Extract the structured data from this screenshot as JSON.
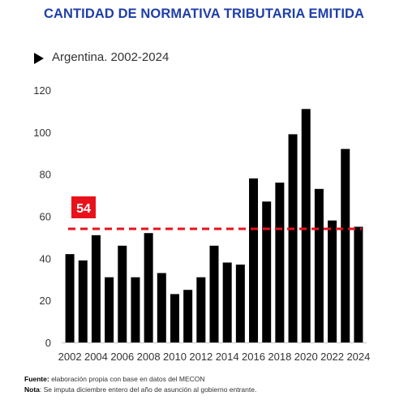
{
  "title": "CANTIDAD DE NORMATIVA TRIBUTARIA EMITIDA",
  "subtitle": "Argentina. 2002-2024",
  "footnotes": {
    "source_label": "Fuente:",
    "source_text": " elaboración propia con base en datos del MECON",
    "note_label": "Nota",
    "note_text": ": Se imputa diciembre entero del año de asunción al gobierno entrante."
  },
  "chart_data": {
    "type": "bar",
    "categories": [
      "2002",
      "2003",
      "2004",
      "2005",
      "2006",
      "2007",
      "2008",
      "2009",
      "2010",
      "2011",
      "2012",
      "2013",
      "2014",
      "2015",
      "2016",
      "2017",
      "2018",
      "2019",
      "2020",
      "2021",
      "2022",
      "2023",
      "2024"
    ],
    "values": [
      42,
      39,
      51,
      31,
      46,
      31,
      52,
      33,
      23,
      25,
      31,
      46,
      38,
      37,
      78,
      67,
      76,
      99,
      111,
      73,
      58,
      92,
      55
    ],
    "xtick_labels": [
      "2002",
      "2004",
      "2006",
      "2008",
      "2010",
      "2012",
      "2014",
      "2016",
      "2018",
      "2020",
      "2022",
      "2024"
    ],
    "yticks": [
      0,
      20,
      40,
      60,
      80,
      100,
      120
    ],
    "ylim": [
      0,
      120
    ],
    "reference_line": {
      "value": 54,
      "label": "54",
      "color": "#e8121b"
    },
    "bar_color": "#000000",
    "grid": false
  }
}
